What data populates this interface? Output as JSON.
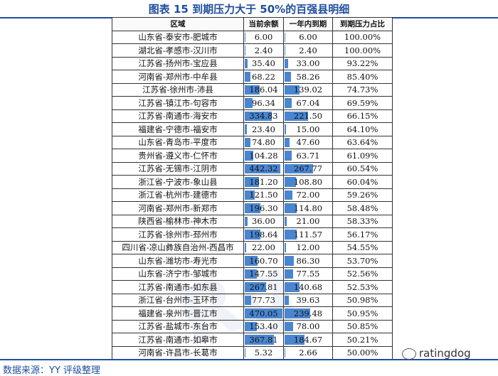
{
  "title": "图表 15 到期压力大于 50%的百强县明细",
  "headers": [
    "区域",
    "当前余额",
    "一年内到期",
    "到期压力占比"
  ],
  "rows": [
    [
      "山东省-泰安市-肥城市",
      "6.00",
      "6.00",
      "100.00%"
    ],
    [
      "湖北省-孝感市-汉川市",
      "2.40",
      "2.40",
      "100.00%"
    ],
    [
      "江苏省-扬州市-宝应县",
      "35.40",
      "33.00",
      "93.22%"
    ],
    [
      "河南省-郑州市-中牟县",
      "68.22",
      "58.26",
      "85.40%"
    ],
    [
      "江苏省-徐州市-沛县",
      "186.04",
      "139.02",
      "74.73%"
    ],
    [
      "江苏省-镇江市-句容市",
      "96.34",
      "67.04",
      "69.59%"
    ],
    [
      "江苏省-南通市-海安市",
      "334.83",
      "221.50",
      "66.15%"
    ],
    [
      "福建省-宁德市-福安市",
      "23.40",
      "15.00",
      "64.10%"
    ],
    [
      "山东省-青岛市-平度市",
      "74.80",
      "47.60",
      "63.64%"
    ],
    [
      "贵州省-遵义市-仁怀市",
      "104.28",
      "63.71",
      "61.09%"
    ],
    [
      "江苏省-无锡市-江阴市",
      "442.32",
      "267.77",
      "60.54%"
    ],
    [
      "浙江省-宁波市-象山县",
      "181.20",
      "108.80",
      "60.04%"
    ],
    [
      "浙江省-杭州市-建德市",
      "121.50",
      "72.00",
      "59.26%"
    ],
    [
      "河南省-郑州市-新郑市",
      "196.30",
      "114.80",
      "58.48%"
    ],
    [
      "陕西省-榆林市-神木市",
      "36.00",
      "21.00",
      "58.33%"
    ],
    [
      "江苏省-徐州市-邳州市",
      "198.64",
      "111.57",
      "56.17%"
    ],
    [
      "四川省-凉山彝族自治州-西昌市",
      "22.00",
      "12.00",
      "54.55%"
    ],
    [
      "山东省-潍坊市-寿光市",
      "160.70",
      "86.30",
      "53.70%"
    ],
    [
      "山东省-济宁市-邹城市",
      "147.55",
      "77.55",
      "52.56%"
    ],
    [
      "江苏省-南通市-如东县",
      "267.81",
      "140.68",
      "52.53%"
    ],
    [
      "浙江省-台州市-玉环市",
      "77.73",
      "39.63",
      "50.98%"
    ],
    [
      "福建省-泉州市-晋江市",
      "470.05",
      "239.48",
      "50.95%"
    ],
    [
      "江苏省-盐城市-东台市",
      "153.40",
      "78.00",
      "50.85%"
    ],
    [
      "江苏省-南通市-如皋市",
      "367.81",
      "184.67",
      "50.21%"
    ],
    [
      "河南省-许昌市-长葛市",
      "5.32",
      "2.66",
      "50.00%"
    ]
  ],
  "bar_color": "#4a86d0",
  "source": "数据来源：YY 评级整理",
  "watermark": "ratingdog"
}
